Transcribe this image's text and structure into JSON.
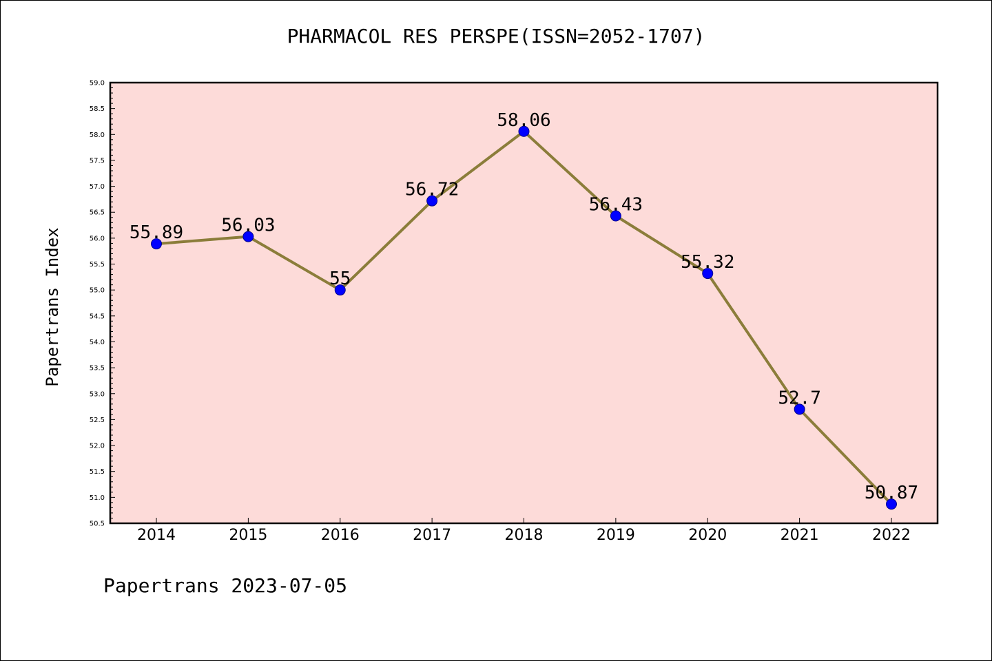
{
  "chart_data": {
    "type": "line",
    "title": "PHARMACOL RES PERSPE(ISSN=2052-1707)",
    "xlabel": "",
    "ylabel": "Papertrans Index",
    "x": [
      "2014",
      "2015",
      "2016",
      "2017",
      "2018",
      "2019",
      "2020",
      "2021",
      "2022"
    ],
    "series": [
      {
        "values": [
          55.89,
          56.03,
          55,
          56.72,
          58.06,
          56.43,
          55.32,
          52.7,
          50.87
        ],
        "labels": [
          "55.89",
          "56.03",
          "55",
          "56.72",
          "58.06",
          "56.43",
          "55.32",
          "52.7",
          "50.87"
        ],
        "line_color": "#8b7d3a",
        "marker_color": "#0000ff"
      }
    ],
    "ylim": [
      50.5,
      59.0
    ],
    "yticks": [
      "50.5",
      "51.0",
      "51.5",
      "52.0",
      "52.5",
      "53.0",
      "53.5",
      "54.0",
      "54.5",
      "55.0",
      "55.5",
      "56.0",
      "56.5",
      "57.0",
      "57.5",
      "58.0",
      "58.5",
      "59.0"
    ],
    "plot_background": "#fddbd9",
    "grid": false
  },
  "footer": "Papertrans 2023-07-05"
}
